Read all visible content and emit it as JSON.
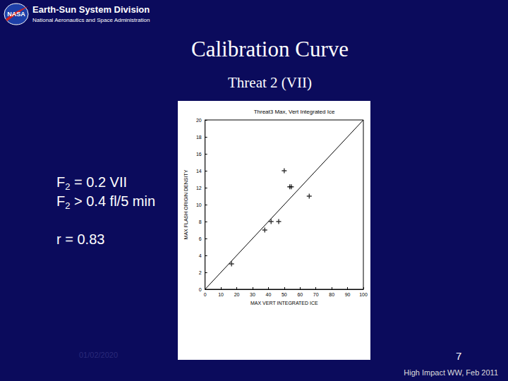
{
  "slide": {
    "logo": "NASA",
    "header": "Earth-Sun System Division",
    "subheader": "National Aeronautics and Space Administration",
    "title": "Calibration Curve",
    "subtitle": "Threat 2 (VII)",
    "equations": [
      {
        "text": "F",
        "sub": "2",
        "rest": " = 0.2 VII"
      },
      {
        "text": "F",
        "sub": "2",
        "rest": " > 0.4 fl/5 min"
      }
    ],
    "correlation": "r = 0.83",
    "date": "01/02/2020",
    "page_number": "7",
    "footer": "High Impact WW, Feb 2011"
  },
  "chart_data": {
    "type": "scatter",
    "title": "Threat3 Max, Vert Integrated Ice",
    "x_label": "MAX VERT INTEGRATED ICE",
    "y_label": "MAX FLASH ORIGIN DENSITY",
    "xlim": [
      0,
      100
    ],
    "xticks": [
      0,
      10,
      20,
      30,
      40,
      50,
      60,
      70,
      80,
      90,
      100
    ],
    "ylim": [
      0,
      20
    ],
    "yticks": [
      0,
      2,
      4,
      6,
      8,
      10,
      12,
      14,
      16,
      18,
      20
    ],
    "grid": false,
    "series": [
      {
        "type": "scatter",
        "marker": "plus",
        "color": "#000000",
        "x": [
          16.7,
          37.7,
          41.7,
          46.5,
          50,
          53.5,
          54.5,
          65.8
        ],
        "values": [
          3,
          7,
          8,
          8,
          14,
          12.1,
          12.1,
          11
        ]
      },
      {
        "type": "line",
        "line_style": "solid",
        "color": "#000000",
        "x": [
          0,
          100
        ],
        "values": [
          0,
          20
        ]
      }
    ]
  }
}
